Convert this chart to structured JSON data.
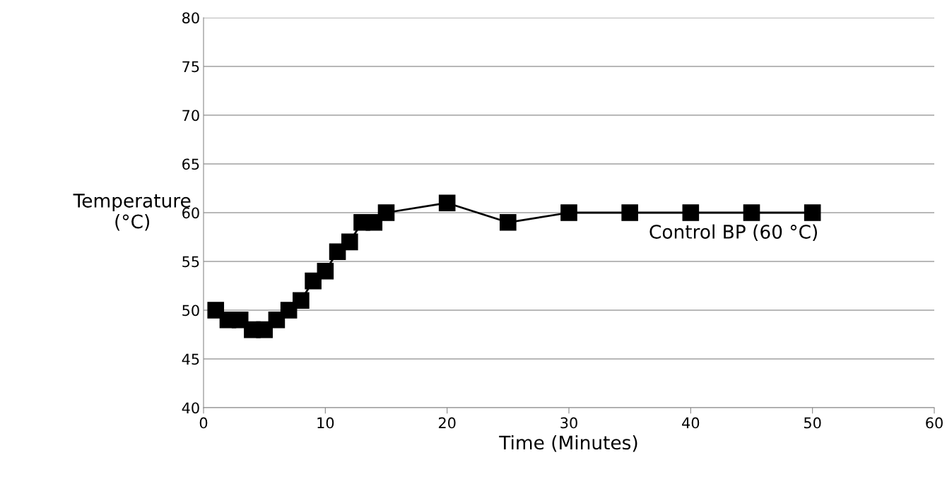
{
  "chart_data": {
    "type": "line",
    "xlabel": "Time (Minutes)",
    "ylabel": "Temperature\n(°C)",
    "x": [
      1,
      2,
      3,
      4,
      5,
      6,
      7,
      8,
      9,
      10,
      11,
      12,
      13,
      14,
      15,
      20,
      25,
      30,
      35,
      40,
      45,
      50
    ],
    "series": [
      {
        "name": "Control BP (60 °C)",
        "color": "#000000",
        "values": [
          50,
          49,
          49,
          48,
          48,
          49,
          50,
          51,
          53,
          54,
          56,
          57,
          59,
          59,
          60,
          61,
          59,
          60,
          60,
          60,
          60,
          60
        ]
      }
    ],
    "xlim": [
      0,
      60
    ],
    "xticks": [
      0,
      10,
      20,
      30,
      40,
      50,
      60
    ],
    "ylim": [
      40,
      80
    ],
    "yticks": [
      40,
      45,
      50,
      55,
      60,
      65,
      70,
      75,
      80
    ],
    "grid": "y",
    "marker": "square",
    "line_style": "solid",
    "legend": false
  }
}
